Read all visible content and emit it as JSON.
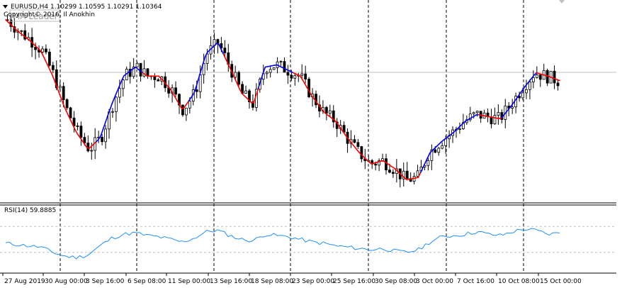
{
  "header": {
    "symbol_line": "EURUSD,H4  1.10299 1.10595 1.10291 1.10364",
    "copyright": "Copyright© 2016, Il Anokhin",
    "indicator_name": "MA Leader"
  },
  "rsi_panel": {
    "label": "RSI(14) 59.8885"
  },
  "colors": {
    "candle": "#000000",
    "ma_up": "#0000ff",
    "ma_down": "#ff0000",
    "rsi_line": "#1e90ff",
    "grid": "#000000",
    "level_line": "#c0c0c0"
  },
  "chart_data": {
    "type": "candlestick",
    "x_tick_labels": [
      "27 Aug 2019",
      "30 Aug 00:00",
      "3 Sep 16:00",
      "6 Sep 08:00",
      "11 Sep 00:00",
      "13 Sep 16:00",
      "18 Sep 08:00",
      "23 Sep 00:00",
      "25 Sep 16:00",
      "30 Sep 08:00",
      "3 Oct 00:00",
      "7 Oct 16:00",
      "10 Oct 08:00",
      "15 Oct 00:00"
    ],
    "last_close": 1.10364,
    "price_close_path": [
      1.109,
      1.108,
      1.1072,
      1.1062,
      1.104,
      1.1012,
      1.099,
      1.0975,
      1.0985,
      1.1015,
      1.104,
      1.1048,
      1.104,
      1.104,
      1.1028,
      1.101,
      1.1025,
      1.106,
      1.107,
      1.1048,
      1.1025,
      1.1015,
      1.1048,
      1.105,
      1.1045,
      1.104,
      1.1022,
      1.1008,
      1.1,
      1.0985,
      1.0972,
      1.0962,
      1.0965,
      1.0958,
      1.0948,
      1.095,
      1.0972,
      1.0982,
      1.099,
      1.1,
      1.1006,
      1.1004,
      1.1002,
      1.1015,
      1.103,
      1.1043,
      1.104,
      1.1036
    ],
    "ma_colors": [
      "down",
      "down",
      "down",
      "down",
      "down",
      "down",
      "down",
      "down",
      "up",
      "up",
      "up",
      "up",
      "down",
      "down",
      "down",
      "down",
      "up",
      "up",
      "up",
      "down",
      "down",
      "down",
      "up",
      "up",
      "up",
      "down",
      "down",
      "down",
      "down",
      "down",
      "down",
      "down",
      "down",
      "down",
      "down",
      "down",
      "up",
      "up",
      "up",
      "up",
      "up",
      "down",
      "down",
      "up",
      "up",
      "up",
      "down",
      "down"
    ],
    "rsi_values": [
      44,
      42,
      40,
      38,
      30,
      24,
      22,
      26,
      40,
      52,
      58,
      60,
      56,
      54,
      50,
      46,
      52,
      62,
      64,
      56,
      50,
      48,
      58,
      56,
      54,
      50,
      46,
      44,
      40,
      38,
      36,
      34,
      36,
      32,
      30,
      34,
      46,
      54,
      56,
      58,
      62,
      58,
      56,
      62,
      66,
      64,
      58,
      59.8885
    ],
    "rsi_ylim": [
      0,
      100
    ],
    "rsi_levels": [
      30,
      70
    ]
  }
}
